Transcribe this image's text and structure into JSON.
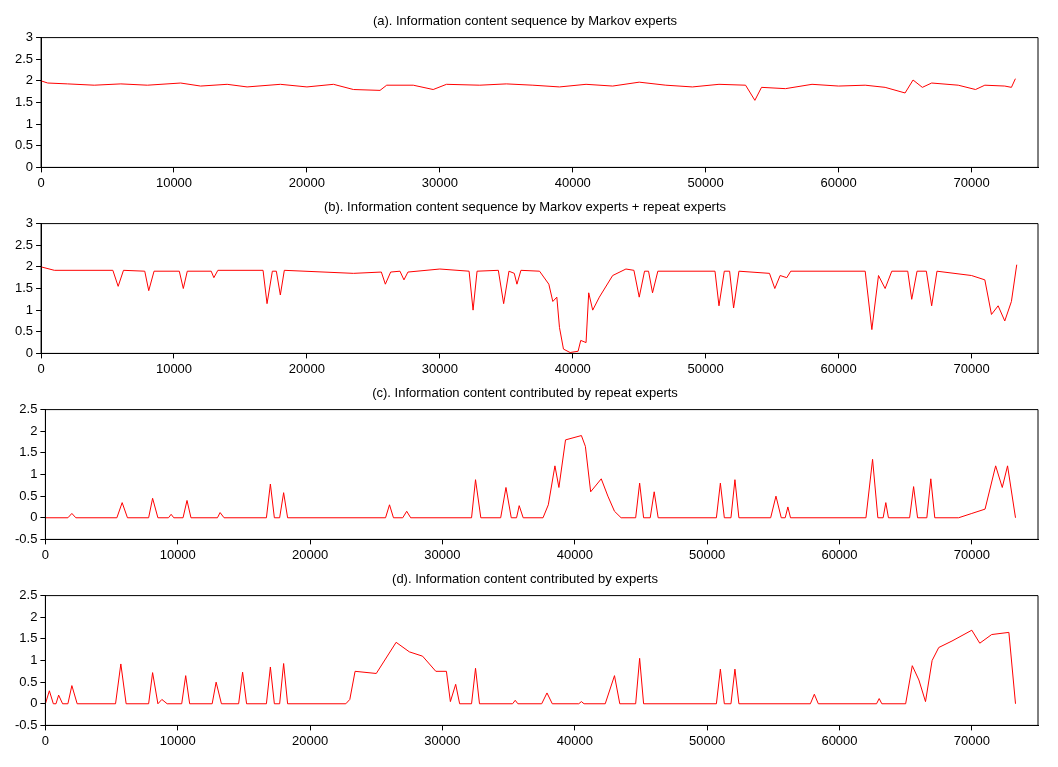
{
  "chart_data": [
    {
      "type": "line",
      "title": "(a). Information content sequence by Markov experts",
      "xlim": [
        0,
        75000
      ],
      "xticks": [
        0,
        10000,
        20000,
        30000,
        40000,
        50000,
        60000,
        70000
      ],
      "ylim": [
        0,
        3
      ],
      "yticks": [
        0,
        0.5,
        1,
        1.5,
        2,
        2.5,
        3
      ],
      "grid": false,
      "legend": false,
      "marker": "none",
      "line_style": "solid",
      "series": [
        {
          "color": "#ff0000",
          "x": [
            0,
            500,
            2000,
            4000,
            6000,
            8000,
            10500,
            12000,
            14000,
            15500,
            18000,
            20000,
            22000,
            23500,
            25500,
            26000,
            28000,
            29500,
            30500,
            33000,
            35000,
            37000,
            39000,
            41000,
            43000,
            45000,
            47000,
            49000,
            51000,
            53000,
            53700,
            54200,
            56000,
            58000,
            60000,
            62000,
            63500,
            65000,
            65600,
            66300,
            67000,
            69000,
            70300,
            71000,
            72500,
            73000,
            73300
          ],
          "values": [
            2.0,
            1.95,
            1.93,
            1.9,
            1.93,
            1.9,
            1.95,
            1.88,
            1.92,
            1.86,
            1.92,
            1.86,
            1.92,
            1.8,
            1.78,
            1.9,
            1.9,
            1.8,
            1.92,
            1.9,
            1.93,
            1.9,
            1.86,
            1.92,
            1.88,
            1.97,
            1.9,
            1.86,
            1.92,
            1.9,
            1.55,
            1.85,
            1.82,
            1.92,
            1.88,
            1.9,
            1.85,
            1.72,
            2.02,
            1.85,
            1.95,
            1.9,
            1.8,
            1.9,
            1.88,
            1.85,
            2.05
          ]
        }
      ]
    },
    {
      "type": "line",
      "title": "(b). Information content sequence by Markov experts + repeat experts",
      "xlim": [
        0,
        75000
      ],
      "xticks": [
        0,
        10000,
        20000,
        30000,
        40000,
        50000,
        60000,
        70000
      ],
      "ylim": [
        0,
        3
      ],
      "yticks": [
        0,
        0.5,
        1,
        1.5,
        2,
        2.5,
        3
      ],
      "grid": false,
      "legend": false,
      "marker": "none",
      "line_style": "solid",
      "series": [
        {
          "color": "#ff0000",
          "x": [
            0,
            1000,
            5400,
            5800,
            6200,
            7800,
            8100,
            8500,
            10400,
            10700,
            11000,
            12800,
            13000,
            13300,
            16700,
            17000,
            17400,
            17700,
            18000,
            18300,
            23500,
            25600,
            25900,
            26300,
            27000,
            27300,
            27600,
            30000,
            32200,
            32500,
            32800,
            34400,
            34800,
            35200,
            35600,
            35800,
            36100,
            37500,
            38200,
            38500,
            38800,
            39000,
            39300,
            39800,
            40400,
            40600,
            41000,
            41200,
            41500,
            42000,
            43000,
            44000,
            44600,
            45000,
            45400,
            45700,
            46000,
            46400,
            50700,
            51000,
            51400,
            51800,
            52100,
            52500,
            54800,
            55200,
            55600,
            56100,
            56400,
            62000,
            62500,
            63000,
            63500,
            64000,
            65200,
            65500,
            65900,
            66600,
            67000,
            67400,
            70000,
            71000,
            71500,
            72000,
            72500,
            73000,
            73400
          ],
          "values": [
            2.0,
            1.92,
            1.92,
            1.55,
            1.92,
            1.9,
            1.45,
            1.9,
            1.9,
            1.5,
            1.9,
            1.9,
            1.75,
            1.92,
            1.92,
            1.15,
            1.9,
            1.9,
            1.35,
            1.92,
            1.85,
            1.88,
            1.6,
            1.88,
            1.9,
            1.7,
            1.88,
            1.95,
            1.9,
            1.0,
            1.9,
            1.92,
            1.15,
            1.9,
            1.85,
            1.6,
            1.92,
            1.9,
            1.6,
            1.2,
            1.3,
            0.6,
            0.1,
            0.02,
            0.05,
            0.3,
            0.25,
            1.4,
            1.0,
            1.3,
            1.8,
            1.95,
            1.92,
            1.3,
            1.9,
            1.9,
            1.4,
            1.9,
            1.9,
            1.1,
            1.9,
            1.9,
            1.05,
            1.9,
            1.85,
            1.5,
            1.8,
            1.75,
            1.9,
            1.9,
            0.55,
            1.8,
            1.5,
            1.9,
            1.9,
            1.25,
            1.9,
            1.9,
            1.1,
            1.9,
            1.8,
            1.7,
            0.9,
            1.1,
            0.75,
            1.2,
            2.05
          ]
        }
      ]
    },
    {
      "type": "line",
      "title": "(c). Information content contributed by repeat experts",
      "xlim": [
        0,
        75000
      ],
      "xticks": [
        0,
        10000,
        20000,
        30000,
        40000,
        50000,
        60000,
        70000
      ],
      "ylim": [
        -0.5,
        2.5
      ],
      "yticks": [
        -0.5,
        0,
        0.5,
        1,
        1.5,
        2,
        2.5
      ],
      "grid": false,
      "legend": false,
      "marker": "none",
      "line_style": "solid",
      "series": [
        {
          "color": "#ff0000",
          "x": [
            0,
            1700,
            2000,
            2300,
            5400,
            5800,
            6200,
            7800,
            8100,
            8500,
            9300,
            9500,
            9700,
            10400,
            10700,
            11000,
            13000,
            13200,
            13500,
            16700,
            17000,
            17300,
            17700,
            18000,
            18300,
            25700,
            26000,
            26300,
            27000,
            27300,
            27600,
            32200,
            32500,
            32900,
            34400,
            34800,
            35200,
            35600,
            35800,
            36100,
            37600,
            38000,
            38500,
            38800,
            39300,
            40500,
            40800,
            41200,
            42000,
            42500,
            43000,
            43500,
            44600,
            44900,
            45200,
            45700,
            46000,
            46300,
            50700,
            51000,
            51300,
            51800,
            52100,
            52400,
            54800,
            55200,
            55600,
            55900,
            56100,
            56300,
            62000,
            62500,
            62900,
            63300,
            63500,
            63700,
            65300,
            65600,
            65900,
            66600,
            66900,
            67200,
            69000,
            70000,
            71000,
            71800,
            72300,
            72700,
            73300
          ],
          "values": [
            0,
            0,
            0.1,
            0,
            0,
            0.35,
            0,
            0,
            0.45,
            0,
            0,
            0.08,
            0,
            0,
            0.4,
            0,
            0,
            0.12,
            0,
            0,
            0.78,
            0,
            0,
            0.58,
            0,
            0,
            0.3,
            0,
            0,
            0.15,
            0,
            0,
            0.88,
            0,
            0,
            0.7,
            0,
            0,
            0.28,
            0,
            0,
            0.3,
            1.2,
            0.7,
            1.8,
            1.9,
            1.65,
            0.6,
            0.9,
            0.5,
            0.15,
            0,
            0,
            0.8,
            0,
            0,
            0.6,
            0,
            0,
            0.8,
            0,
            0,
            0.88,
            0,
            0,
            0.5,
            0,
            0,
            0.25,
            0,
            0,
            1.35,
            0,
            0,
            0.35,
            0,
            0,
            0.72,
            0,
            0,
            0.9,
            0,
            0,
            0.1,
            0.2,
            1.2,
            0.7,
            1.2,
            0
          ]
        }
      ]
    },
    {
      "type": "line",
      "title": "(d). Information content contributed by experts",
      "xlim": [
        0,
        75000
      ],
      "xticks": [
        0,
        10000,
        20000,
        30000,
        40000,
        50000,
        60000,
        70000
      ],
      "ylim": [
        -0.5,
        2.5
      ],
      "yticks": [
        -0.5,
        0,
        0.5,
        1,
        1.5,
        2,
        2.5
      ],
      "grid": false,
      "legend": false,
      "marker": "none",
      "line_style": "solid",
      "series": [
        {
          "color": "#ff0000",
          "x": [
            0,
            300,
            600,
            800,
            1000,
            1300,
            1700,
            2000,
            2400,
            5300,
            5700,
            6100,
            7800,
            8100,
            8500,
            8800,
            9200,
            10300,
            10600,
            10900,
            12600,
            12900,
            13300,
            14600,
            14900,
            15200,
            16700,
            17000,
            17300,
            17700,
            18000,
            18300,
            22700,
            23000,
            23400,
            25000,
            26500,
            27500,
            28500,
            29500,
            30300,
            30600,
            31000,
            31300,
            32200,
            32500,
            32800,
            35300,
            35500,
            35700,
            37500,
            37900,
            38300,
            40300,
            40500,
            40700,
            42300,
            43000,
            43400,
            44600,
            44900,
            45200,
            50700,
            51000,
            51300,
            51800,
            52100,
            52400,
            57800,
            58100,
            58400,
            62800,
            63000,
            63200,
            65000,
            65500,
            66000,
            66500,
            67000,
            67500,
            68500,
            70000,
            70600,
            71500,
            72800,
            73300
          ],
          "values": [
            0,
            0.3,
            0,
            0,
            0.2,
            0,
            0,
            0.42,
            0,
            0,
            0.92,
            0,
            0,
            0.72,
            0,
            0.1,
            0,
            0,
            0.65,
            0,
            0,
            0.5,
            0,
            0,
            0.73,
            0,
            0,
            0.85,
            0,
            0,
            0.93,
            0,
            0,
            0.1,
            0.75,
            0.7,
            1.42,
            1.2,
            1.1,
            0.75,
            0.75,
            0.05,
            0.45,
            0,
            0,
            0.82,
            0,
            0,
            0.08,
            0,
            0,
            0.25,
            0,
            0,
            0.05,
            0,
            0,
            0.65,
            0,
            0,
            1.05,
            0,
            0,
            0.8,
            0,
            0,
            0.8,
            0,
            0,
            0.22,
            0,
            0,
            0.12,
            0,
            0,
            0.88,
            0.55,
            0.05,
            1.0,
            1.3,
            1.45,
            1.7,
            1.4,
            1.6,
            1.65,
            0
          ]
        }
      ]
    }
  ]
}
